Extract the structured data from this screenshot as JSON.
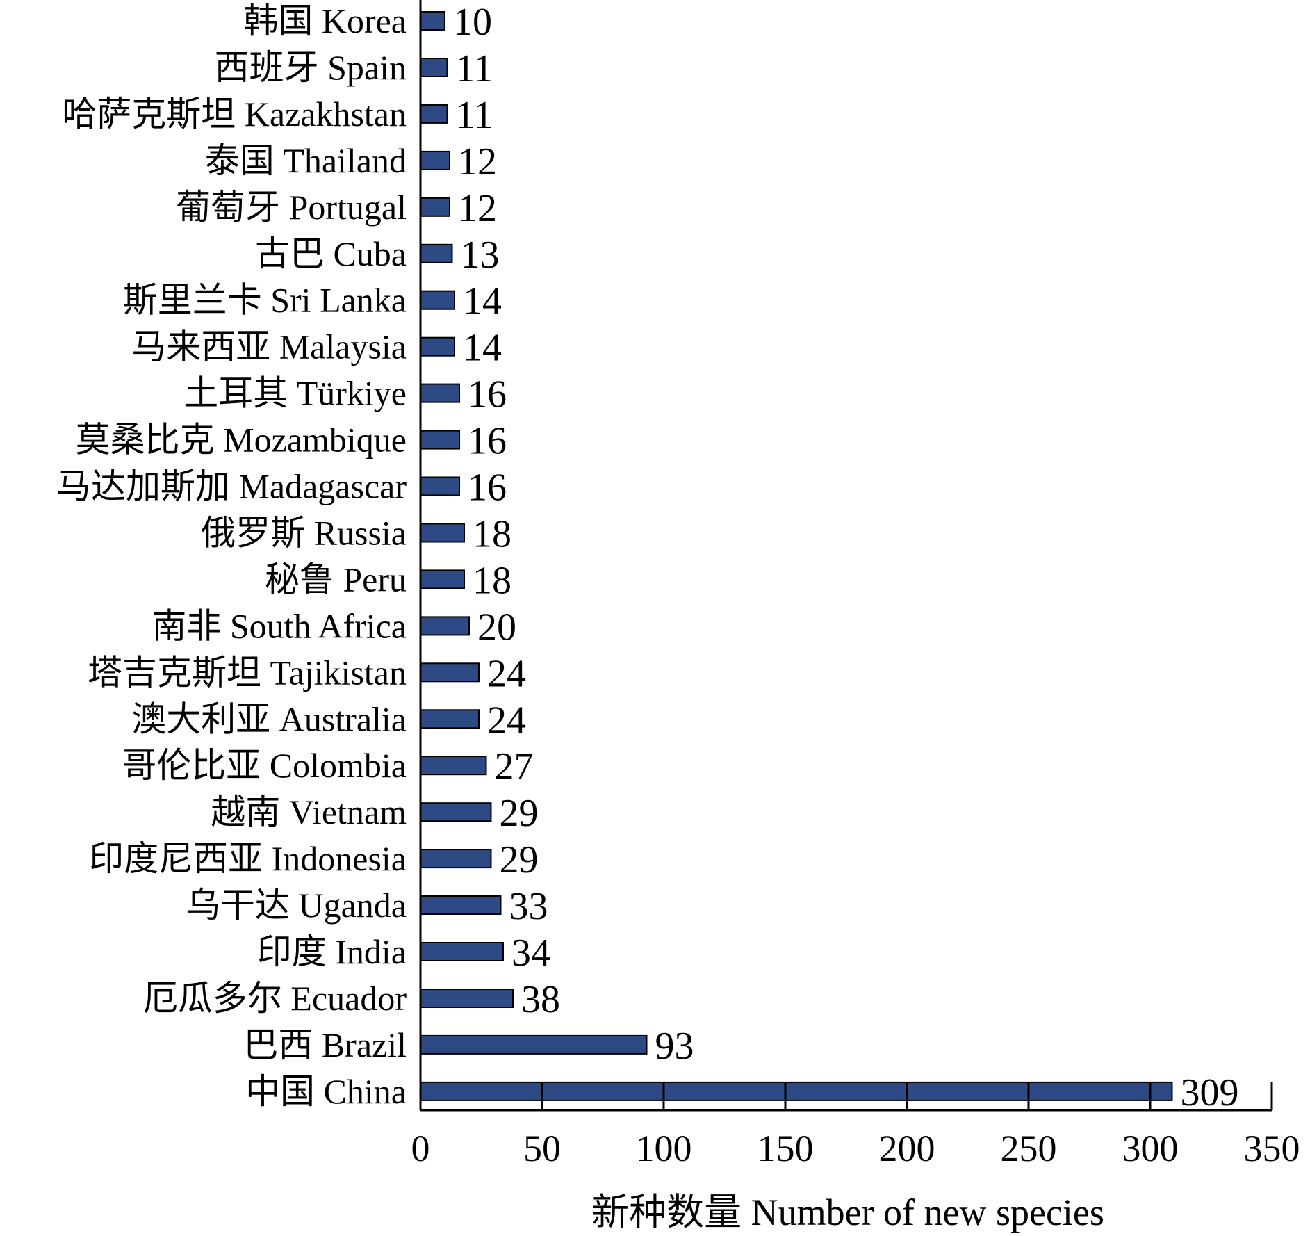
{
  "chart_data": {
    "type": "bar",
    "orientation": "horizontal",
    "categories": [
      "韩国 Korea",
      "西班牙 Spain",
      "哈萨克斯坦 Kazakhstan",
      "泰国 Thailand",
      "葡萄牙 Portugal",
      "古巴 Cuba",
      "斯里兰卡 Sri Lanka",
      "马来西亚 Malaysia",
      "土耳其 Türkiye",
      "莫桑比克 Mozambique",
      "马达加斯加 Madagascar",
      "俄罗斯 Russia",
      "秘鲁 Peru",
      "南非 South Africa",
      "塔吉克斯坦 Tajikistan",
      "澳大利亚 Australia",
      "哥伦比亚 Colombia",
      "越南 Vietnam",
      "印度尼西亚 Indonesia",
      "乌干达 Uganda",
      "印度 India",
      "厄瓜多尔 Ecuador",
      "巴西 Brazil",
      "中国 China"
    ],
    "values": [
      10,
      11,
      11,
      12,
      12,
      13,
      14,
      14,
      16,
      16,
      16,
      18,
      18,
      20,
      24,
      24,
      27,
      29,
      29,
      33,
      34,
      38,
      93,
      309
    ],
    "value_labels": [
      "10",
      "11",
      "11",
      "12",
      "12",
      "13",
      "14",
      "14",
      "16",
      "16",
      "16",
      "18",
      "18",
      "20",
      "24",
      "24",
      "27",
      "29",
      "29",
      "33",
      "34",
      "38",
      "93",
      "309"
    ],
    "xlabel": "新种数量 Number of new species",
    "ylabel": "",
    "xlim": [
      0,
      350
    ],
    "xticks": [
      0,
      50,
      100,
      150,
      200,
      250,
      300,
      350
    ],
    "xtick_labels": [
      "0",
      "50",
      "100",
      "150",
      "200",
      "250",
      "300",
      "350"
    ],
    "grid": false,
    "legend": "none",
    "bar_color": "#2e4a85",
    "bar_edge_color": "#000000"
  }
}
